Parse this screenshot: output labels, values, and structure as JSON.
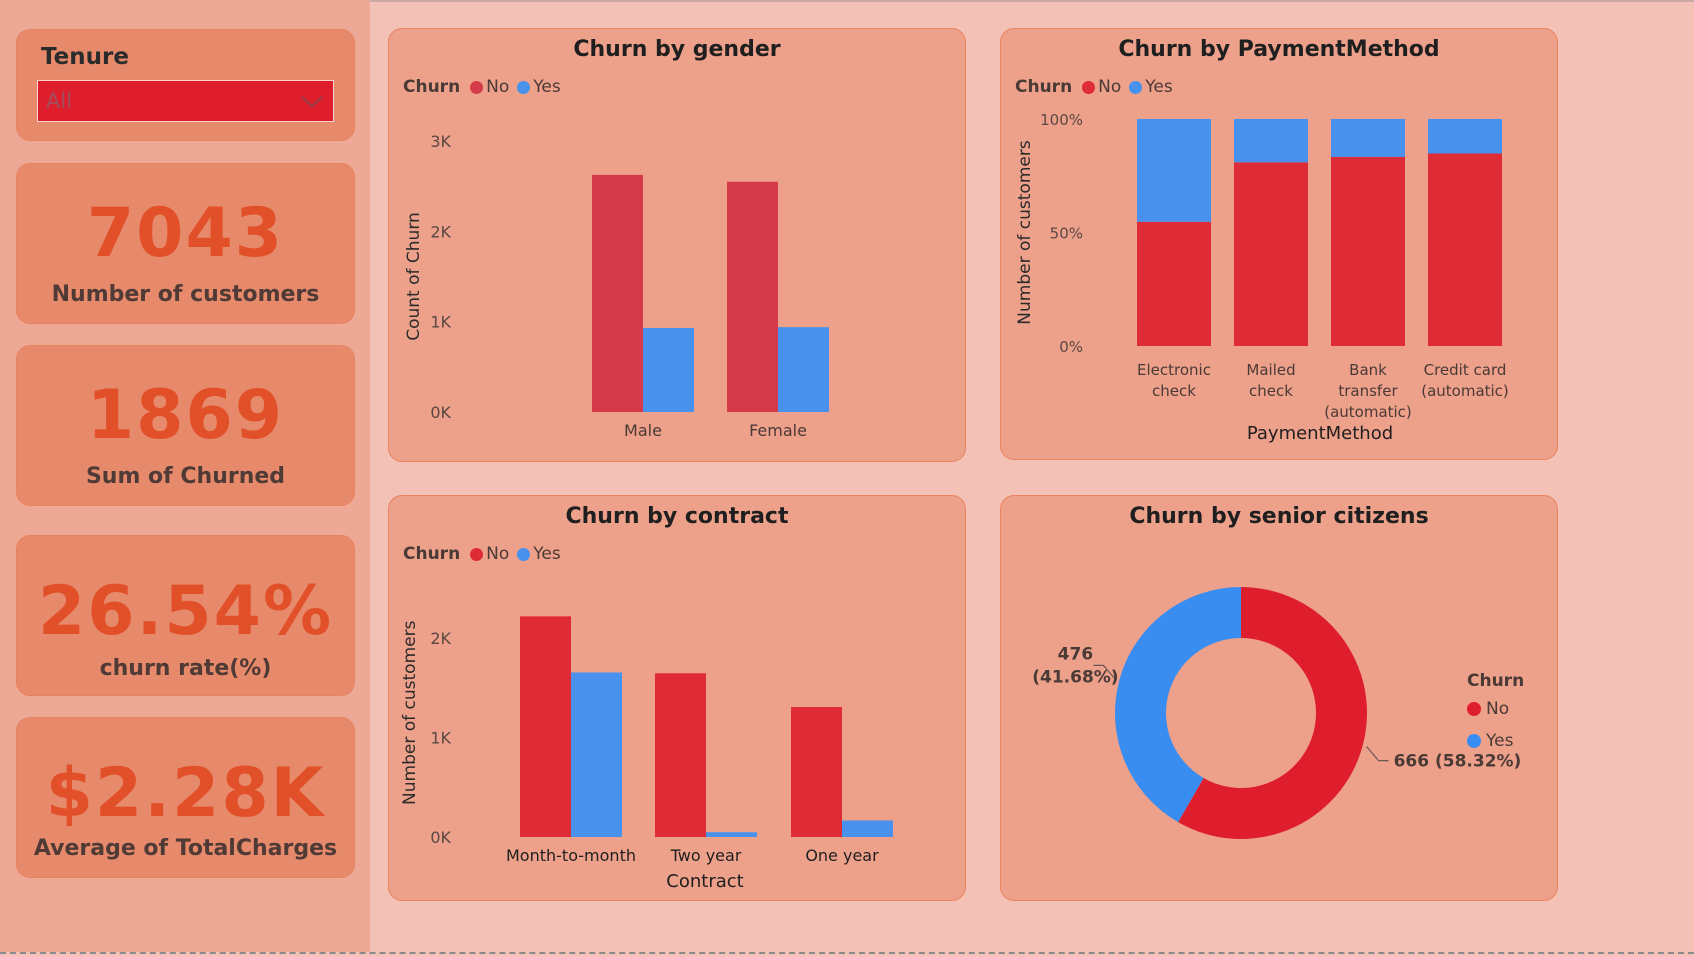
{
  "slicer": {
    "title": "Tenure",
    "value": "All"
  },
  "kpis": [
    {
      "value": "7043",
      "label": "Number of customers"
    },
    {
      "value": "1869",
      "label": "Sum of Churned"
    },
    {
      "value": "26.54%",
      "label": "churn rate(%)"
    },
    {
      "value": "$2.28K",
      "label": "Average of TotalCharges"
    }
  ],
  "colors": {
    "no": "#df2b35",
    "yes": "#4891ec",
    "no_gender": "#d43a49"
  },
  "chart_data": [
    {
      "type": "bar",
      "title": "Churn by gender",
      "legend_title": "Churn",
      "legend": [
        "No",
        "Yes"
      ],
      "categories": [
        "Male",
        "Female"
      ],
      "series": [
        {
          "name": "No",
          "values": [
            2625,
            2549
          ]
        },
        {
          "name": "Yes",
          "values": [
            930,
            939
          ]
        }
      ],
      "xlabel": "",
      "ylabel": "Count of Churn",
      "ylim": [
        0,
        3000
      ],
      "yticks": [
        "0K",
        "1K",
        "2K",
        "3K"
      ],
      "grid": false
    },
    {
      "type": "bar",
      "stacked": "percent",
      "title": "Churn by PaymentMethod",
      "legend_title": "Churn",
      "legend": [
        "No",
        "Yes"
      ],
      "categories": [
        [
          "Electronic",
          "check"
        ],
        [
          "Mailed",
          "check"
        ],
        [
          "Bank",
          "transfer",
          "(automatic)"
        ],
        [
          "Credit card",
          "(automatic)"
        ]
      ],
      "series": [
        {
          "name": "No",
          "values": [
            54.7,
            80.9,
            83.3,
            84.8
          ]
        },
        {
          "name": "Yes",
          "values": [
            45.3,
            19.1,
            16.7,
            15.2
          ]
        }
      ],
      "xlabel": "PaymentMethod",
      "ylabel": "Number of customers",
      "ylim": [
        0,
        100
      ],
      "yticks": [
        "0%",
        "50%",
        "100%"
      ],
      "grid": false
    },
    {
      "type": "bar",
      "title": "Churn by contract",
      "legend_title": "Churn",
      "legend": [
        "No",
        "Yes"
      ],
      "categories": [
        "Month-to-month",
        "Two year",
        "One year"
      ],
      "series": [
        {
          "name": "No",
          "values": [
            2220,
            1647,
            1307
          ]
        },
        {
          "name": "Yes",
          "values": [
            1655,
            48,
            166
          ]
        }
      ],
      "xlabel": "Contract",
      "ylabel": "Number of customers",
      "ylim": [
        0,
        2500
      ],
      "yticks": [
        "0K",
        "1K",
        "2K"
      ],
      "grid": false
    },
    {
      "type": "pie",
      "donut": true,
      "title": "Churn by senior citizens",
      "legend_title": "Churn",
      "legend": [
        "No",
        "Yes"
      ],
      "slices": [
        {
          "name": "No",
          "value": 666,
          "label": "666 (58.32%)"
        },
        {
          "name": "Yes",
          "value": 476,
          "label_lines": [
            "476",
            "(41.68%)"
          ]
        }
      ]
    }
  ]
}
